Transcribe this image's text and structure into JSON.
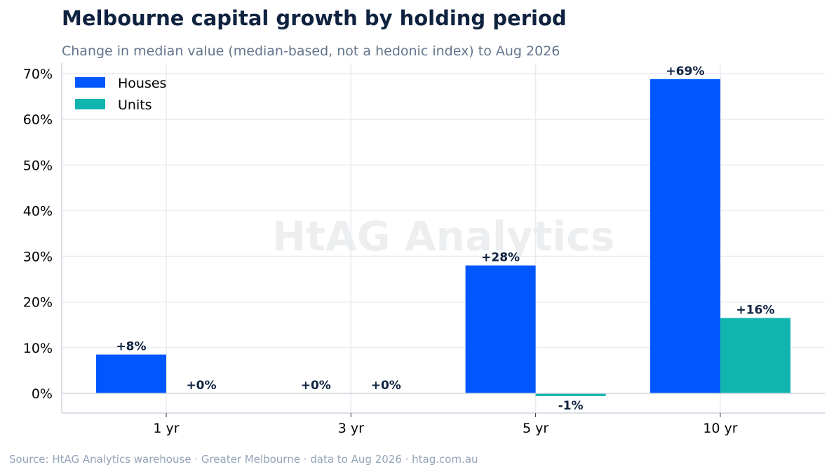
{
  "chart_data": {
    "type": "bar",
    "title": "Melbourne capital growth by holding period",
    "subtitle": "Change in median value (median-based, not a hedonic index) to Aug 2026",
    "categories": [
      "1 yr",
      "3 yr",
      "5 yr",
      "10 yr"
    ],
    "series": [
      {
        "name": "Houses",
        "color": "#0057ff",
        "values": [
          8.5,
          0,
          28,
          68.8
        ],
        "labels": [
          "+8%",
          "+0%",
          "+28%",
          "+69%"
        ]
      },
      {
        "name": "Units",
        "color": "#0fb5ae",
        "values": [
          0,
          0,
          -0.6,
          16.5
        ],
        "labels": [
          "+0%",
          "+0%",
          "-1%",
          "+16%"
        ]
      }
    ],
    "ylim": [
      -4.3,
      72.3
    ],
    "yticks": [
      0,
      10,
      20,
      30,
      40,
      50,
      60,
      70
    ],
    "ytick_labels": [
      "0%",
      "10%",
      "20%",
      "30%",
      "40%",
      "50%",
      "60%",
      "70%"
    ],
    "xlabel": "",
    "ylabel": "",
    "grid": true,
    "legend_position": "top-left",
    "watermark": "HtAG Analytics"
  },
  "footer": {
    "source": "Source: HtAG Analytics warehouse  ·  Greater Melbourne  ·  data to Aug 2026  ·  htag.com.au"
  }
}
